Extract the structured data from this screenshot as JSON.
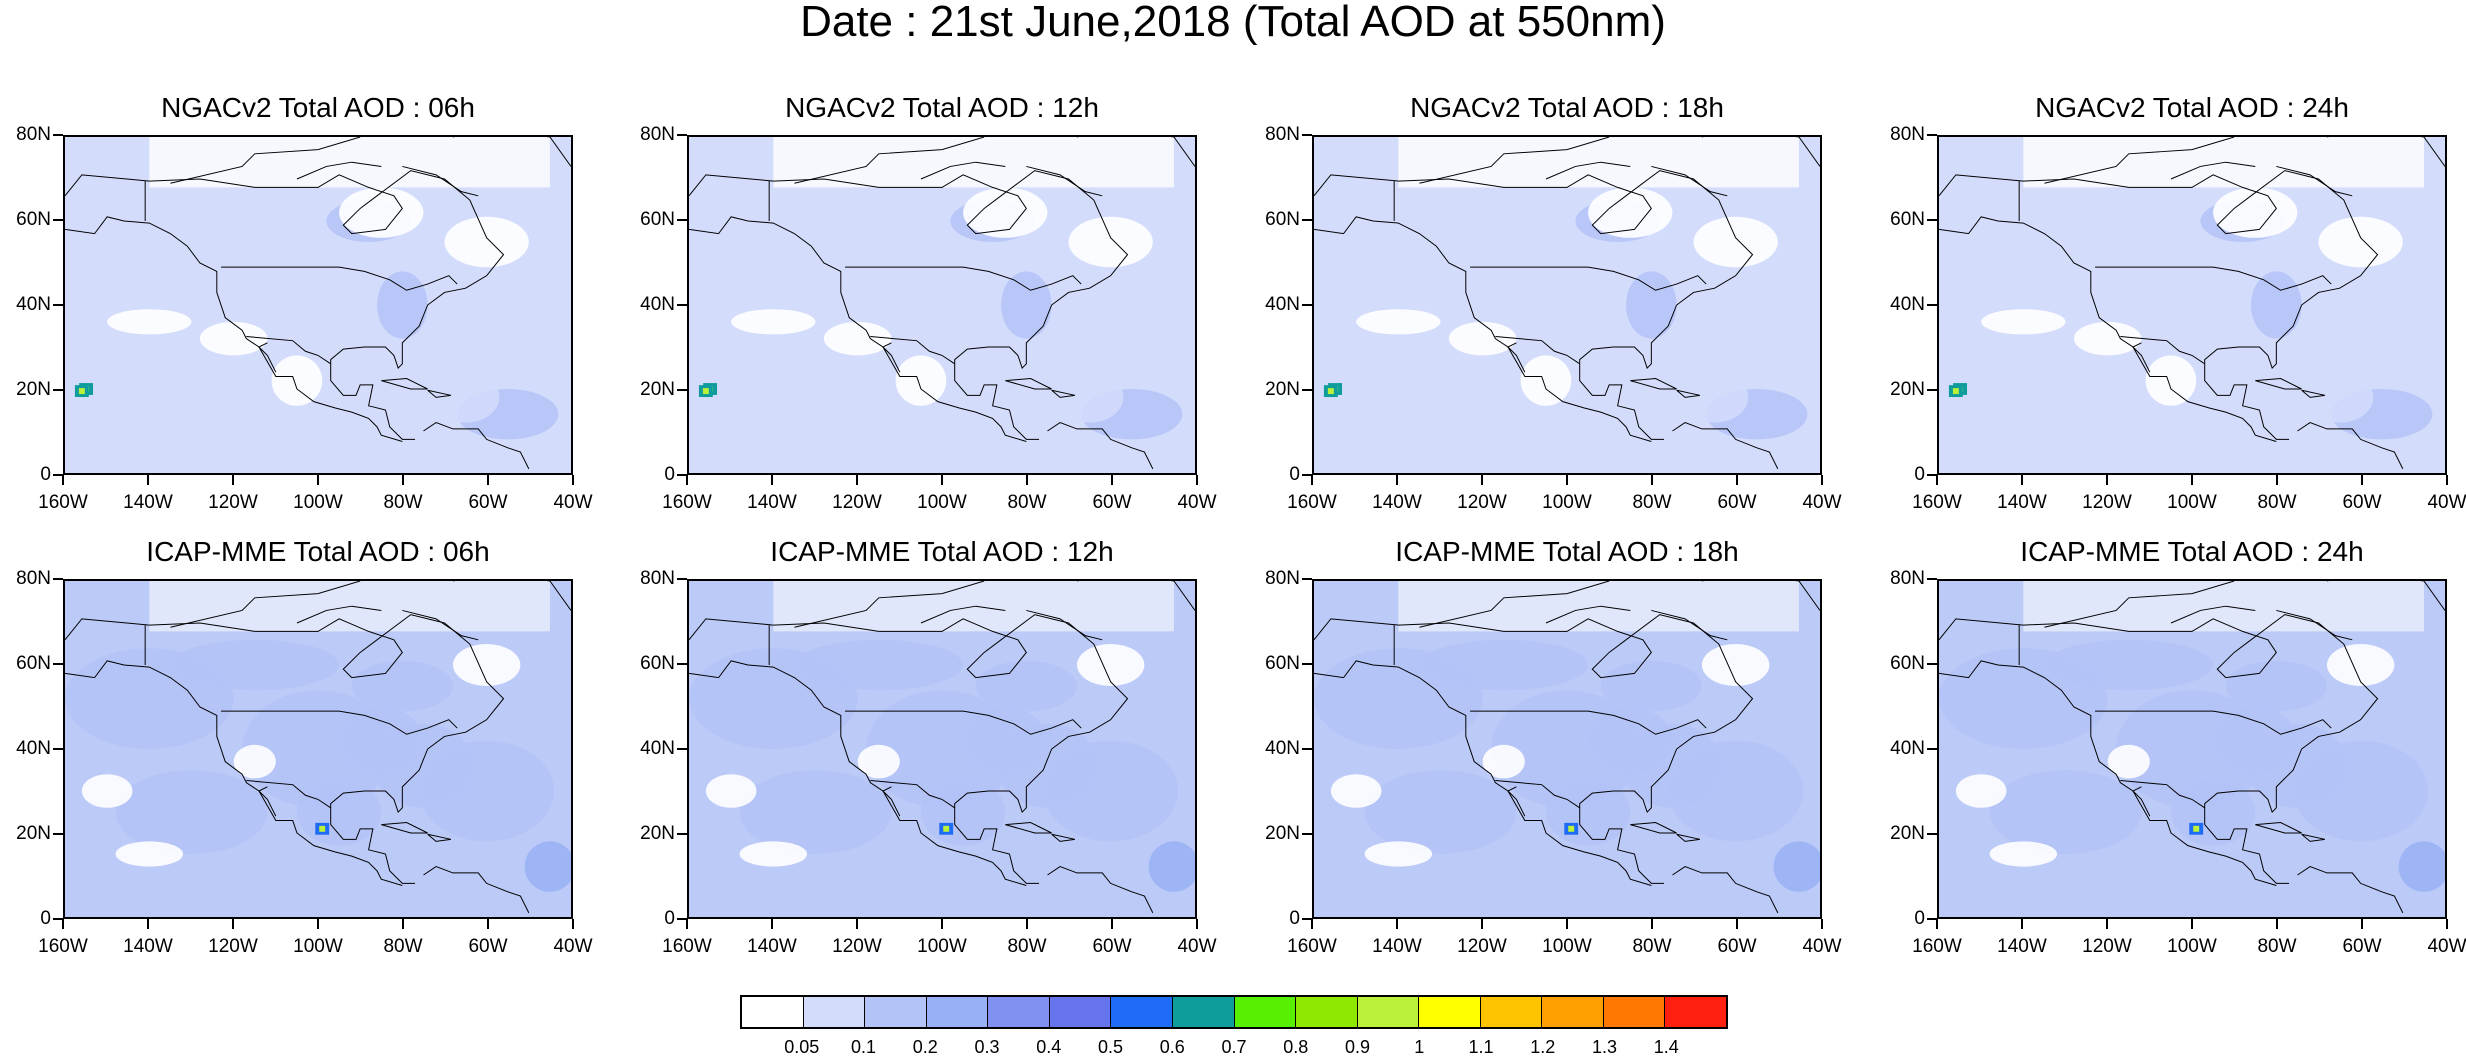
{
  "title": "Date : 21st June,2018 (Total AOD at 550nm)",
  "panels": [
    {
      "title": "NGACv2 Total AOD : 06h",
      "model": "ngac"
    },
    {
      "title": "NGACv2 Total AOD : 12h",
      "model": "ngac"
    },
    {
      "title": "NGACv2 Total AOD : 18h",
      "model": "ngac"
    },
    {
      "title": "NGACv2 Total AOD : 24h",
      "model": "ngac"
    },
    {
      "title": "ICAP-MME Total AOD : 06h",
      "model": "icap"
    },
    {
      "title": "ICAP-MME Total AOD : 12h",
      "model": "icap"
    },
    {
      "title": "ICAP-MME Total AOD : 18h",
      "model": "icap"
    },
    {
      "title": "ICAP-MME Total AOD : 24h",
      "model": "icap"
    }
  ],
  "y_ticks": [
    "80N",
    "60N",
    "40N",
    "20N",
    "0"
  ],
  "x_ticks": [
    "160W",
    "140W",
    "120W",
    "100W",
    "80W",
    "60W",
    "40W"
  ],
  "colorbar": {
    "labels": [
      "0.05",
      "0.1",
      "0.2",
      "0.3",
      "0.4",
      "0.5",
      "0.6",
      "0.7",
      "0.8",
      "0.9",
      "1",
      "1.1",
      "1.2",
      "1.3",
      "1.4"
    ],
    "colors": [
      "#ffffff",
      "#d4dcfb",
      "#b4c3f7",
      "#98b0f5",
      "#7f90f1",
      "#6674ee",
      "#1e6cf5",
      "#0f9c9c",
      "#56f000",
      "#8ee800",
      "#bcf13a",
      "#ffff00",
      "#ffc400",
      "#ffa000",
      "#ff7800",
      "#ff2010"
    ]
  }
}
